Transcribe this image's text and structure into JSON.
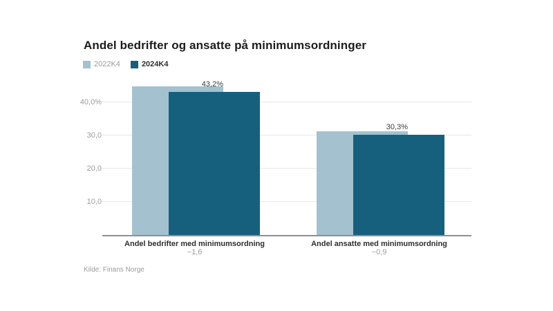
{
  "chart_data": {
    "type": "bar",
    "bar_layout": "overlapping",
    "title": "Andel bedrifter og ansatte på minimumsordninger",
    "source": "Kilde: Finans Norge",
    "categories": [
      "Andel bedrifter med minimumsordning",
      "Andel ansatte med minimumsordning"
    ],
    "category_changes": [
      "−1,6",
      "−0,9"
    ],
    "series": [
      {
        "name": "2022K4",
        "color": "#a3c1cf",
        "values": [
          44.8,
          31.2
        ]
      },
      {
        "name": "2024K4",
        "color": "#16607e",
        "values": [
          43.2,
          30.3
        ]
      }
    ],
    "value_labels": [
      "43,2%",
      "30,3%"
    ],
    "y_ticks": [
      {
        "value": 40,
        "label": "40,0%"
      },
      {
        "value": 30,
        "label": "30,0"
      },
      {
        "value": 20,
        "label": "20,0"
      },
      {
        "value": 10,
        "label": "10,0"
      }
    ],
    "ylim": [
      0,
      45
    ],
    "grid": true,
    "legend_position": "top-left"
  }
}
